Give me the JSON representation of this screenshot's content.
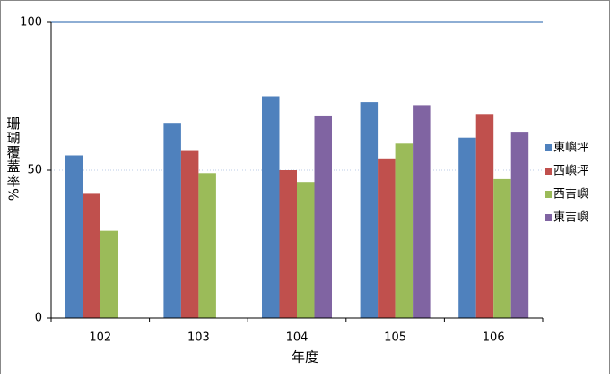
{
  "chart_data": {
    "type": "bar",
    "x_label": "年度",
    "y_label": "珊瑚覆蓋率%",
    "categories": [
      "102",
      "103",
      "104",
      "105",
      "106"
    ],
    "series": [
      {
        "name": "東嶼坪",
        "color": "#4f81bd",
        "values": [
          55,
          66,
          75,
          73,
          61
        ]
      },
      {
        "name": "西嶼坪",
        "color": "#c0504d",
        "values": [
          42,
          56.5,
          50,
          54,
          69
        ]
      },
      {
        "name": "西吉嶼",
        "color": "#9bbb59",
        "values": [
          29.5,
          49,
          46,
          59,
          47
        ]
      },
      {
        "name": "東吉嶼",
        "color": "#8064a2",
        "values": [
          null,
          null,
          68.5,
          72,
          63
        ]
      }
    ],
    "ylim": [
      0,
      100
    ],
    "yticks": [
      0,
      50,
      100
    ],
    "grid": true,
    "legend": "right"
  }
}
